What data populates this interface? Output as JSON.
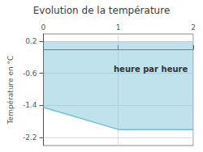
{
  "chart_data": {
    "type": "area",
    "title": "Evolution de la température",
    "ylabel": "Température en °C",
    "annotation": "heure par heure",
    "x": [
      0,
      1,
      2
    ],
    "values": [
      -1.45,
      -2.0,
      -2.0
    ],
    "fill_top": 0.2,
    "color": "#70bfd8",
    "xlim": [
      0,
      2
    ],
    "xticks": [
      0,
      1,
      2
    ],
    "ylim": [
      -2.4,
      0.38
    ],
    "yticks": [
      0.2,
      -0.6,
      -1.4,
      -2.2
    ],
    "grid": true
  }
}
